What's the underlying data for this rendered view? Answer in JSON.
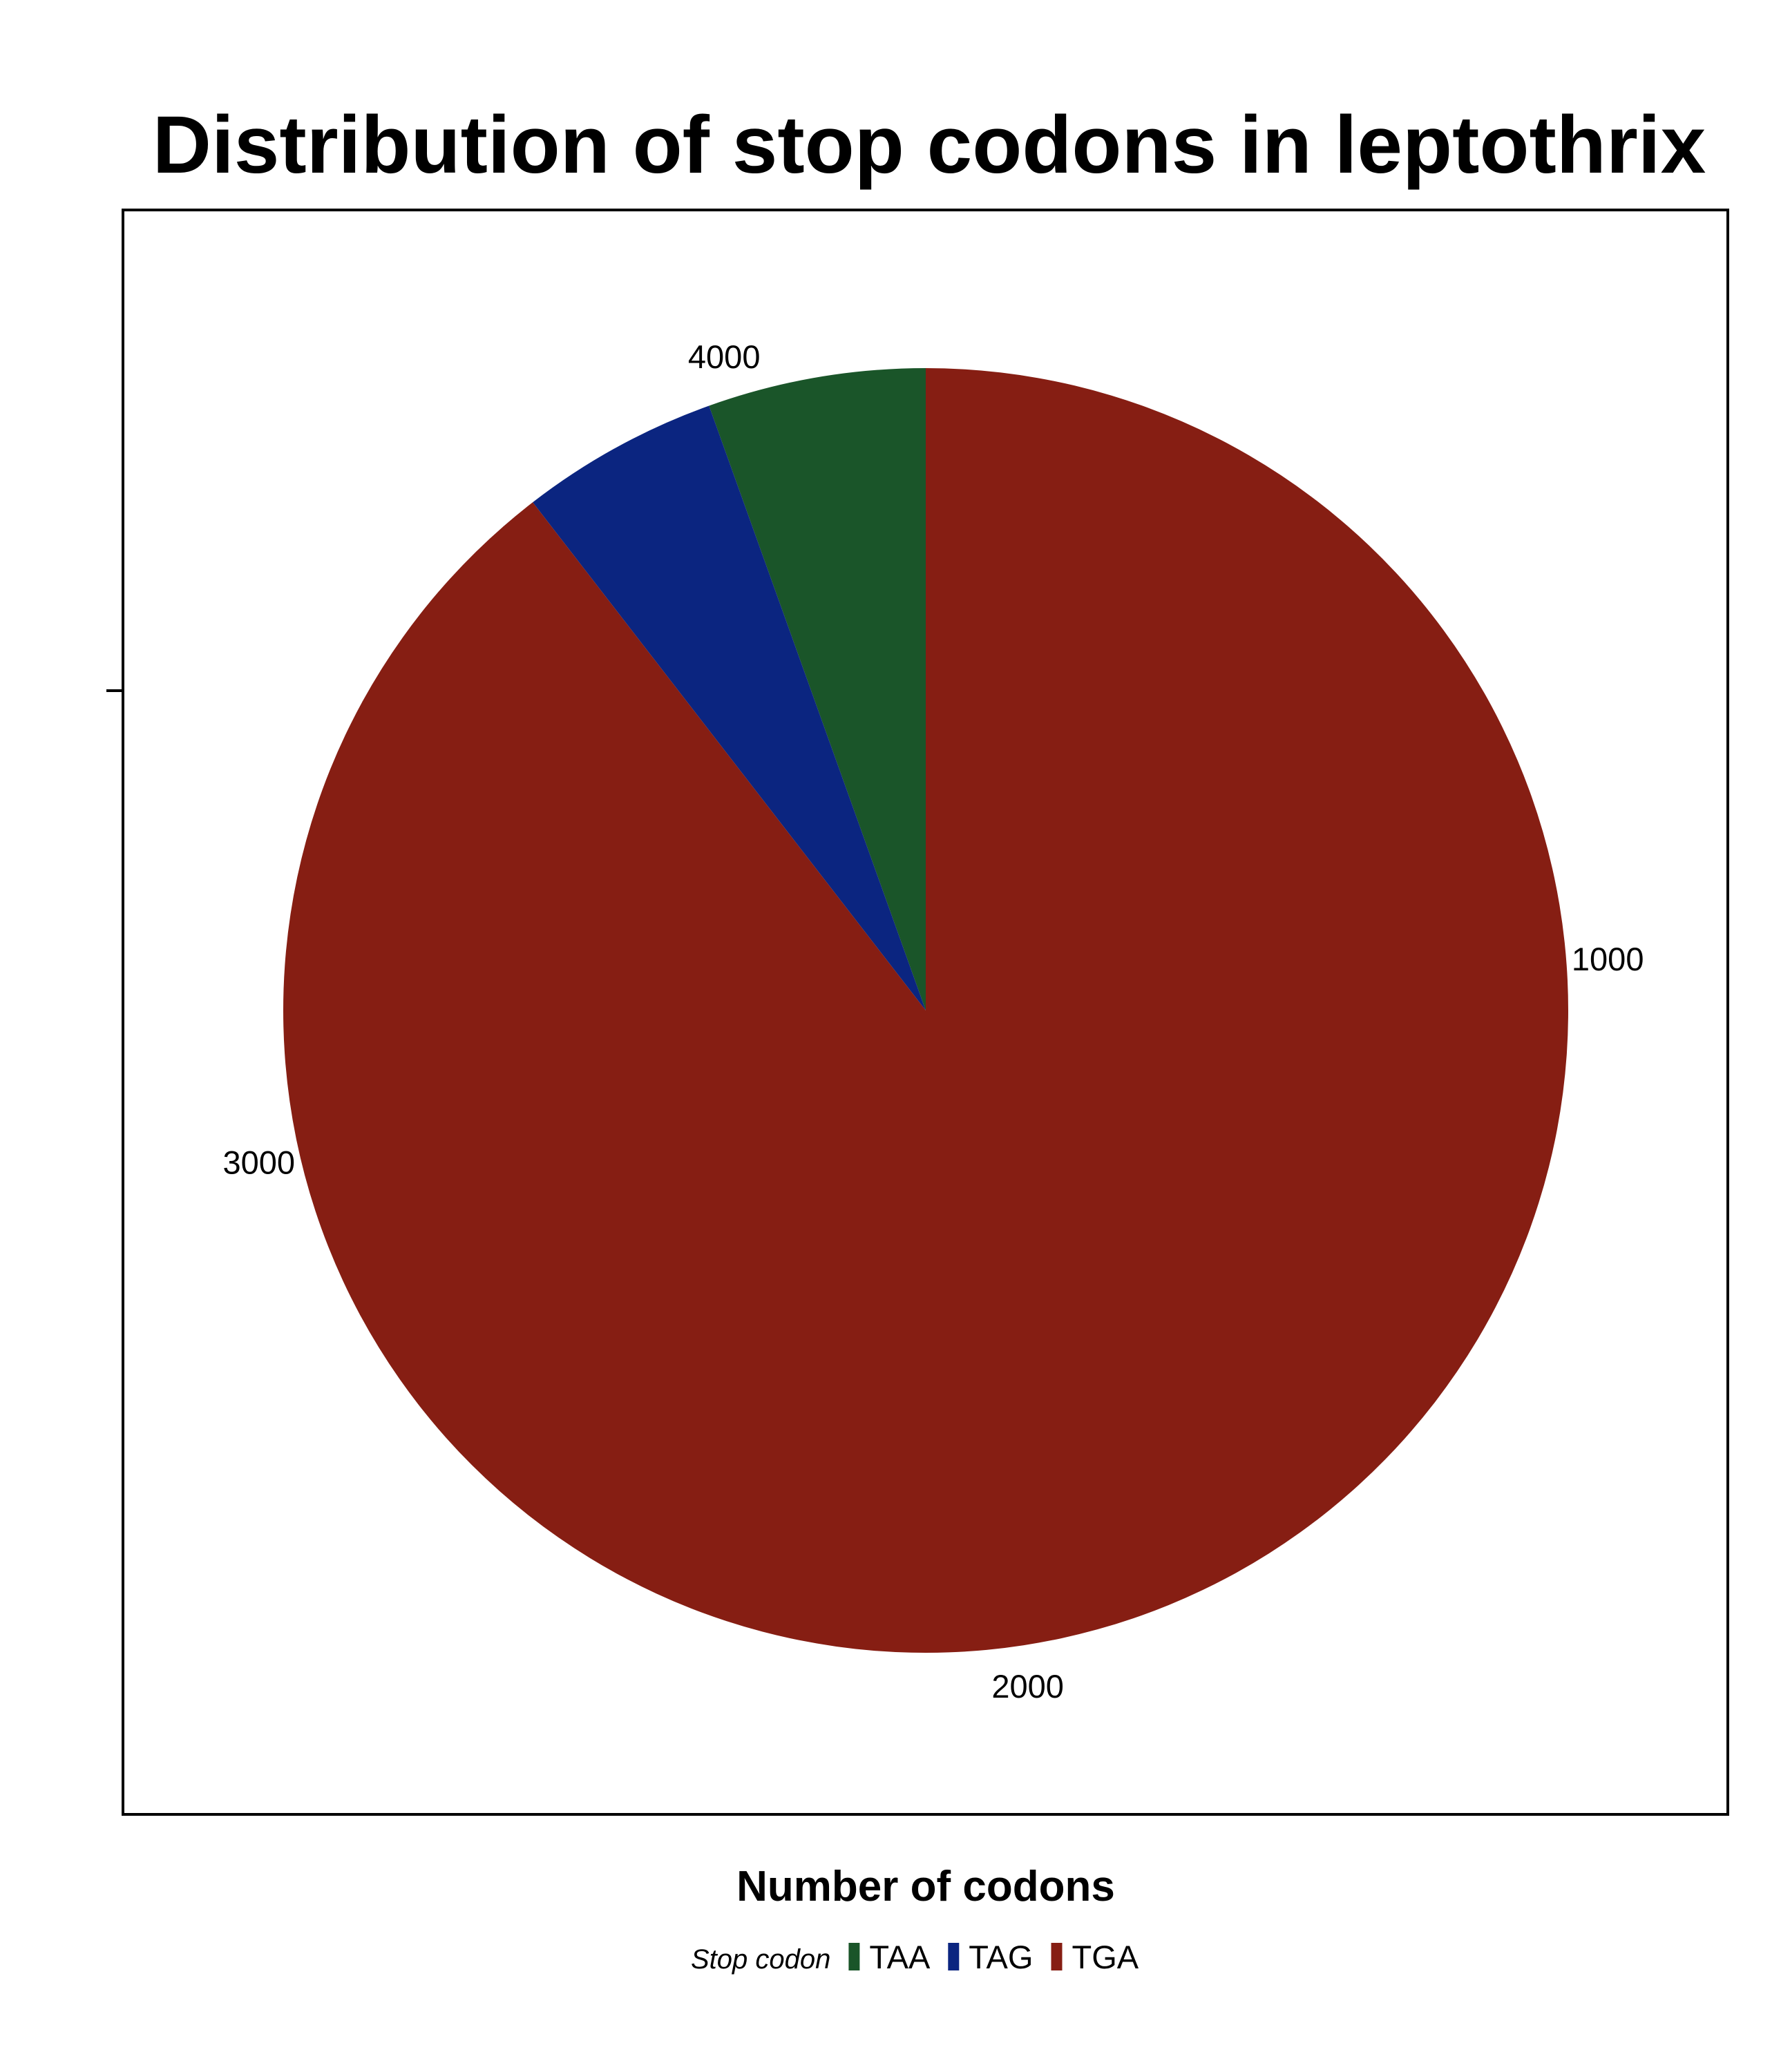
{
  "chart_data": {
    "type": "pie",
    "title": "Distribution of stop codons in leptothrix",
    "xlabel": "Number of codons",
    "ylabel": "",
    "categories": [
      "TAA",
      "TAG",
      "TGA"
    ],
    "values": [
      230,
      210,
      3760
    ],
    "colors": [
      "#1a5529",
      "#0b2580",
      "#861e13"
    ],
    "axis": {
      "range": [
        0,
        4200
      ],
      "ticks": [
        "1000",
        "2000",
        "3000",
        "4000"
      ],
      "tick_values": [
        1000,
        2000,
        3000,
        4000
      ]
    },
    "legend": {
      "title": "Stop codon",
      "placement": "bottom",
      "items": [
        "TAA",
        "TAG",
        "TGA"
      ]
    },
    "grid": false
  }
}
